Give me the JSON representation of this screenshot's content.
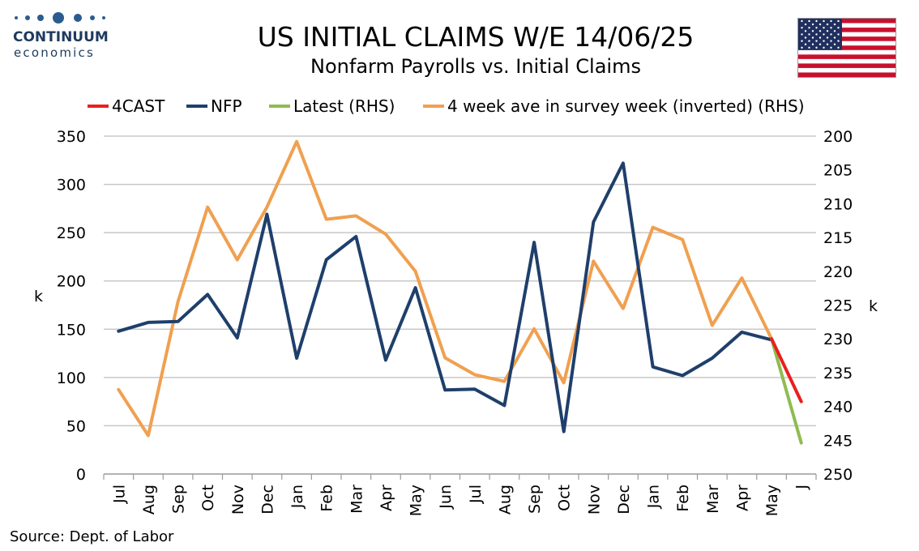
{
  "brand": {
    "name": "CONTINUUM",
    "sub": "economics",
    "color": "#1f3a5f"
  },
  "header": {
    "title": "US INITIAL CLAIMS W/E 14/06/25",
    "subtitle": "Nonfarm Payrolls vs. Initial Claims"
  },
  "footer": {
    "source": "Source: Dept. of Labor"
  },
  "flag": {
    "icon": "us-flag-icon"
  },
  "chart_data": {
    "type": "line",
    "categories": [
      "Jul",
      "Aug",
      "Sep",
      "Oct",
      "Nov",
      "Dec",
      "Jan",
      "Feb",
      "Mar",
      "Apr",
      "May",
      "Jun",
      "Jul",
      "Aug",
      "Sep",
      "Oct",
      "Nov",
      "Dec",
      "Jan",
      "Feb",
      "Mar",
      "Apr",
      "May",
      "J"
    ],
    "left_axis": {
      "label": "k",
      "min": 0,
      "max": 350,
      "ticks": [
        0,
        50,
        100,
        150,
        200,
        250,
        300,
        350
      ]
    },
    "right_axis": {
      "label": "k",
      "min": 200,
      "max": 250,
      "inverted": true,
      "ticks": [
        200,
        205,
        210,
        215,
        220,
        225,
        230,
        235,
        240,
        245,
        250
      ]
    },
    "grid": true,
    "legend_position": "top",
    "series": [
      {
        "name": "4CAST",
        "axis": "left",
        "color": "#e8201e",
        "points": [
          [
            22,
            140
          ],
          [
            23,
            75
          ]
        ]
      },
      {
        "name": "NFP",
        "axis": "left",
        "color": "#1f3f6b",
        "points": [
          [
            0,
            148
          ],
          [
            1,
            157
          ],
          [
            2,
            158
          ],
          [
            3,
            186
          ],
          [
            4,
            141
          ],
          [
            5,
            269
          ],
          [
            6,
            120
          ],
          [
            7,
            222
          ],
          [
            8,
            246
          ],
          [
            9,
            118
          ],
          [
            10,
            193
          ],
          [
            11,
            87
          ],
          [
            12,
            88
          ],
          [
            13,
            71
          ],
          [
            14,
            240
          ],
          [
            15,
            44
          ],
          [
            16,
            261
          ],
          [
            17,
            322
          ],
          [
            18,
            111
          ],
          [
            19,
            102
          ],
          [
            20,
            120
          ],
          [
            21,
            147
          ],
          [
            22,
            139
          ]
        ]
      },
      {
        "name": "Latest (RHS)",
        "axis": "right",
        "color": "#8fbc4f",
        "points": [
          [
            22,
            230
          ],
          [
            23,
            245.4
          ]
        ]
      },
      {
        "name": "4 week ave in survey week (inverted) (RHS)",
        "axis": "right",
        "color": "#f0a050",
        "points": [
          [
            0,
            237.5
          ],
          [
            1,
            244.3
          ],
          [
            2,
            224.5
          ],
          [
            3,
            210.5
          ],
          [
            4,
            218.3
          ],
          [
            5,
            210.5
          ],
          [
            6,
            200.8
          ],
          [
            7,
            212.3
          ],
          [
            8,
            211.8
          ],
          [
            9,
            214.5
          ],
          [
            10,
            220.0
          ],
          [
            11,
            232.8
          ],
          [
            12,
            235.3
          ],
          [
            13,
            236.3
          ],
          [
            14,
            228.5
          ],
          [
            15,
            236.5
          ],
          [
            16,
            218.5
          ],
          [
            17,
            225.5
          ],
          [
            18,
            213.5
          ],
          [
            19,
            215.3
          ],
          [
            20,
            228.0
          ],
          [
            21,
            221.0
          ],
          [
            22,
            230.0
          ]
        ]
      }
    ]
  }
}
